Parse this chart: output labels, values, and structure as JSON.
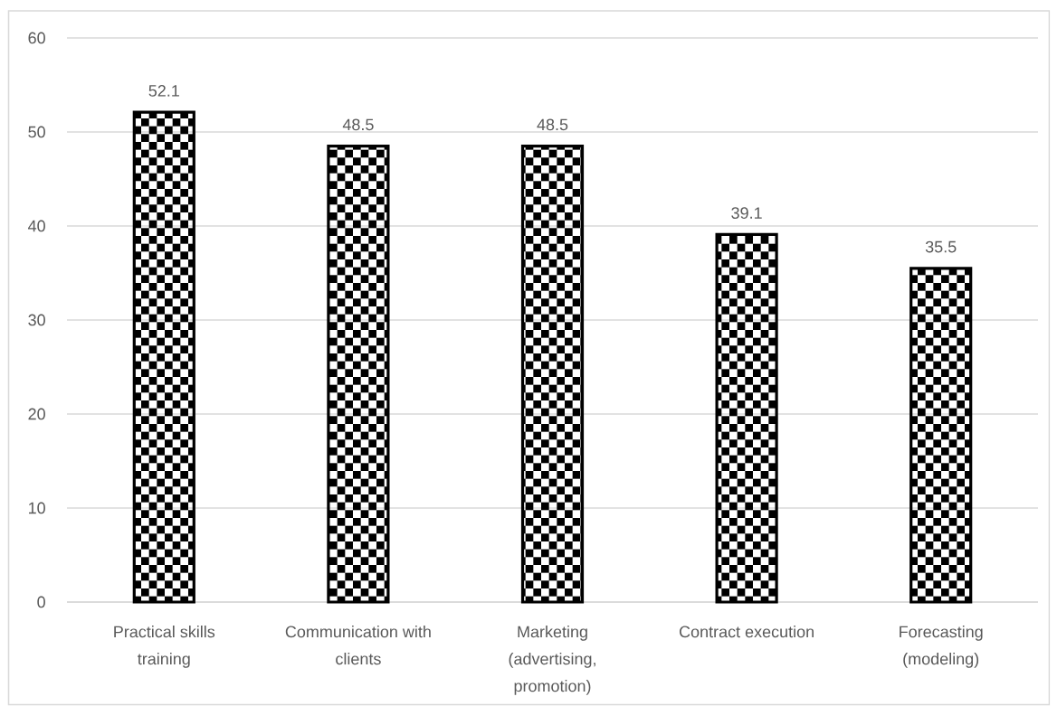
{
  "chart_data": {
    "type": "bar",
    "categories": [
      "Practical skills training",
      "Communication with clients",
      "Marketing (advertising, promotion)",
      "Contract execution",
      "Forecasting (modeling)"
    ],
    "values": [
      52.1,
      48.5,
      48.5,
      39.1,
      35.5
    ],
    "color": "#000000",
    "ylim": [
      0,
      60
    ],
    "yticks": [
      0,
      10,
      20,
      30,
      40,
      50,
      60
    ],
    "grid": "y",
    "data_labels": true
  }
}
